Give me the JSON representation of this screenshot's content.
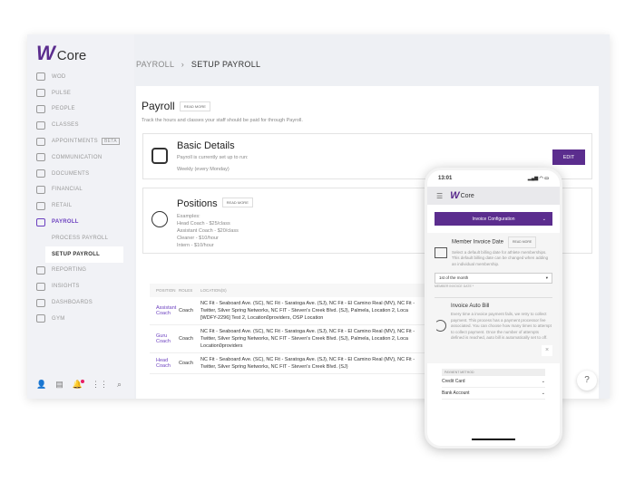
{
  "app": {
    "logo_mark": "W",
    "logo_text": "Core"
  },
  "sidebar": {
    "items": [
      {
        "label": "WOD",
        "icon": "wod-icon"
      },
      {
        "label": "PULSE",
        "icon": "pulse-icon"
      },
      {
        "label": "PEOPLE",
        "icon": "people-icon"
      },
      {
        "label": "CLASSES",
        "icon": "classes-icon"
      },
      {
        "label": "APPOINTMENTS",
        "icon": "calendar-icon",
        "badge": "BETA"
      },
      {
        "label": "COMMUNICATION",
        "icon": "chat-icon"
      },
      {
        "label": "DOCUMENTS",
        "icon": "folder-icon"
      },
      {
        "label": "FINANCIAL",
        "icon": "dollar-icon"
      },
      {
        "label": "RETAIL",
        "icon": "cart-icon"
      },
      {
        "label": "PAYROLL",
        "icon": "payroll-icon"
      }
    ],
    "sub": [
      "PROCESS PAYROLL",
      "SETUP PAYROLL"
    ],
    "items2": [
      {
        "label": "REPORTING",
        "icon": "clipboard-icon"
      },
      {
        "label": "INSIGHTS",
        "icon": "insights-icon"
      },
      {
        "label": "DASHBOARDS",
        "icon": "pie-icon"
      },
      {
        "label": "GYM",
        "icon": "gym-icon"
      }
    ]
  },
  "breadcrumb": {
    "parent": "PAYROLL",
    "sep": "›",
    "current": "SETUP PAYROLL"
  },
  "page": {
    "title": "Payroll",
    "read_more": "READ MORE",
    "description": "Track the hours and classes your staff should be paid for through Payroll."
  },
  "basic": {
    "title": "Basic Details",
    "line1": "Payroll is currently set up to run:",
    "line2": "Weekly (every Monday)",
    "edit": "EDIT"
  },
  "positions": {
    "title": "Positions",
    "read_more": "READ MORE",
    "examples": [
      "Examples:",
      "Head Coach - $25/class",
      "Assistant Coach - $20/class",
      "Cleaner - $10/hour",
      "Intern - $10/hour"
    ]
  },
  "table": {
    "headers": [
      "POSITION",
      "ROLES",
      "LOCATION(S)"
    ],
    "rows": [
      {
        "position": "Assistant Coach",
        "role": "Coach",
        "locations": [
          "NC Fit - Seaboard Ave. (SC), NC Fit - Saratoga Ave. (SJ), NC Fit - El Camino Real (MV), NC Fit -",
          "Twitter, Silver Spring Networks, NC FIT - Steven's Creek Blvd. (SJ), Palmela, Location 2, Loca",
          "[WDFY-2296] Test 2, Location0providers, OSP Location"
        ]
      },
      {
        "position": "Guru Coach",
        "role": "Coach",
        "locations": [
          "NC Fit - Seaboard Ave. (SC), NC Fit - Saratoga Ave. (SJ), NC Fit - El Camino Real (MV), NC Fit -",
          "Twitter, Silver Spring Networks, NC FIT - Steven's Creek Blvd. (SJ), Palmela, Location 2, Loca",
          "Location0providers"
        ]
      },
      {
        "position": "Head Coach",
        "role": "Coach",
        "locations": [
          "NC Fit - Seaboard Ave. (SC), NC Fit - Saratoga Ave. (SJ), NC Fit - El Camino Real (MV), NC Fit -",
          "Twitter, Silver Spring Networks, NC FIT - Steven's Creek Blvd. (SJ)",
          ""
        ]
      }
    ]
  },
  "help": "?",
  "phone": {
    "time": "13:01",
    "status": "▂▄▆ ◠ ▭",
    "section": "Invoice Configuration",
    "invoice_date": {
      "title": "Member Invoice Date",
      "read_more": "READ MORE",
      "text": "Select a default billing date for athlete memberships. This default billing date can be changed when adding an individual membership.",
      "value": "1st of the month",
      "label": "MEMBER INVOICE DATE *"
    },
    "auto_bill": {
      "title": "Invoice Auto Bill",
      "text": "Every time a invoice payment fails, we retry to collect payment. This process has a payment processor fee associated. You can choose how many times to attempt to collect payment. Once the number of attempts defined is reached, auto bill is automatically set to off."
    },
    "payment_label": "PAYMENT METHOD",
    "methods": [
      "Credit Card",
      "Bank Account"
    ]
  },
  "colors": {
    "accent": "#5b2d8e",
    "link": "#6b3fbf",
    "notification": "#e91e63"
  }
}
